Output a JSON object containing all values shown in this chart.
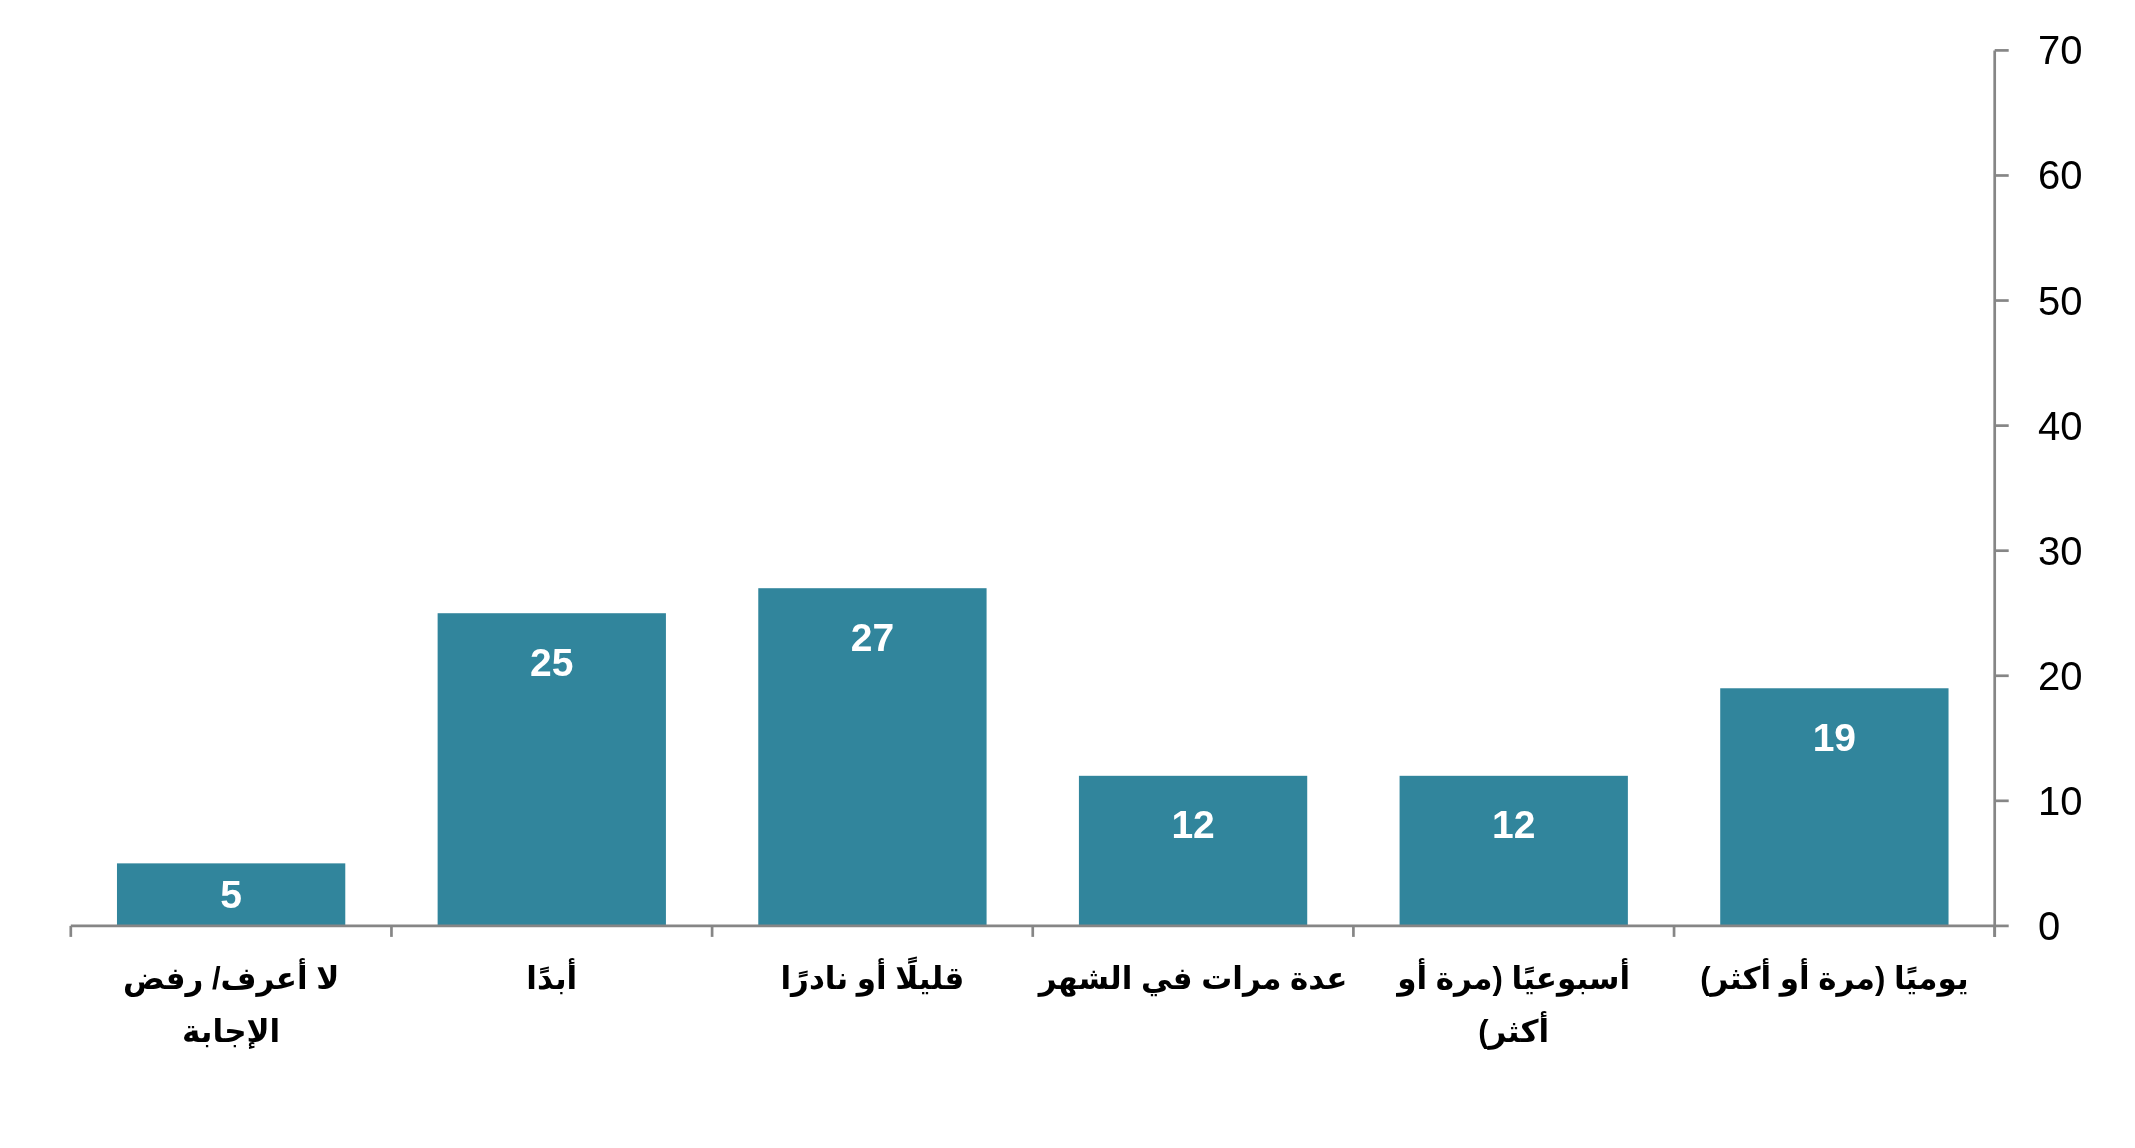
{
  "chart_data": {
    "type": "bar",
    "categories": [
      "لا أعرف/ رفض الإجابة",
      "أبدًا",
      "قليلًا أو نادرًا",
      "عدة مرات في الشهر",
      "أسبوعيًا (مرة أو أكثر)",
      "يوميًا (مرة أو أكثر)"
    ],
    "values": [
      5,
      25,
      27,
      12,
      12,
      19
    ],
    "color": "#31859c",
    "ylim": [
      0,
      70
    ],
    "yticks": [
      0,
      10,
      20,
      30,
      40,
      50,
      60,
      70
    ],
    "data_labels": true
  }
}
